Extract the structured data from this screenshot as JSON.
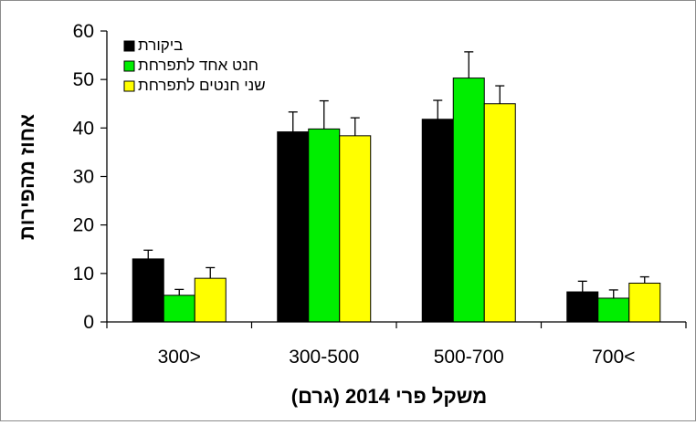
{
  "chart_data": {
    "type": "bar",
    "title": "",
    "xlabel": "משקל פרי 2014 (גרם)",
    "ylabel": "אחוז מהפירות",
    "ylim": [
      0,
      60
    ],
    "yticks": [
      "0",
      "10",
      "20",
      "30",
      "40",
      "50",
      "60"
    ],
    "categories": [
      "300>",
      "300-500",
      "500-700",
      "700<"
    ],
    "series": [
      {
        "name": "ביקורת",
        "color": "#000000",
        "values": [
          13,
          39.2,
          41.8,
          6.2
        ],
        "errors": [
          1.8,
          4.1,
          3.9,
          2.2
        ]
      },
      {
        "name": "חנט אחד לתפרחת",
        "color": "#00ee00",
        "values": [
          5.5,
          39.8,
          50.3,
          4.9
        ],
        "errors": [
          1.2,
          5.8,
          5.4,
          1.7
        ]
      },
      {
        "name": "שני חנטים לתפרחת",
        "color": "#ffff00",
        "values": [
          9,
          38.4,
          45,
          8
        ],
        "errors": [
          2.2,
          3.7,
          3.7,
          1.3
        ]
      }
    ],
    "legend_position": "top-left",
    "grid": false
  }
}
